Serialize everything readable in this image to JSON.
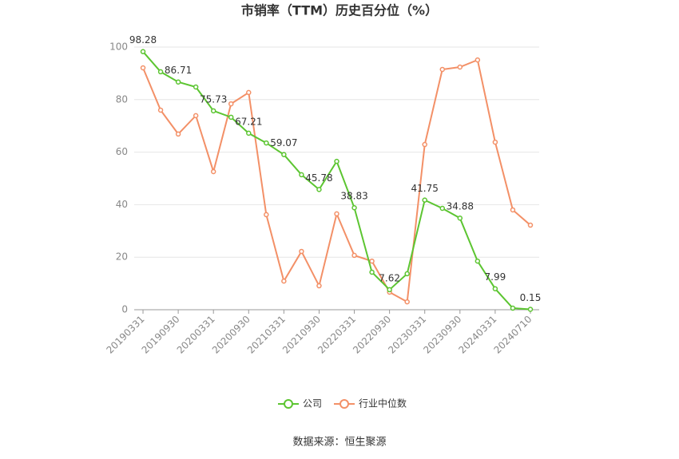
{
  "chart_data": {
    "type": "line",
    "title": "市销率（TTM）历史百分位（%）",
    "source": "数据来源：恒生聚源",
    "categories": [
      "20190331",
      null,
      "20190930",
      null,
      "20200331",
      null,
      "20200930",
      null,
      "20210331",
      null,
      "20210930",
      null,
      "20220331",
      null,
      "20220930",
      null,
      "20230331",
      null,
      "20230930",
      null,
      "20240331",
      null,
      "20240710"
    ],
    "series": [
      {
        "name": "公司",
        "color": "#5cc531",
        "values": [
          98.28,
          90.6,
          86.71,
          84.8,
          75.73,
          73.3,
          67.21,
          63.5,
          59.07,
          51.4,
          45.78,
          56.5,
          38.83,
          14.3,
          7.62,
          13.7,
          41.75,
          38.6,
          34.88,
          18.5,
          7.99,
          0.6,
          0.15
        ],
        "value_labels": [
          "98.28",
          null,
          "86.71",
          null,
          "75.73",
          null,
          "67.21",
          null,
          "59.07",
          null,
          "45.78",
          null,
          "38.83",
          null,
          "7.62",
          null,
          "41.75",
          null,
          "34.88",
          null,
          "7.99",
          null,
          "0.15"
        ]
      },
      {
        "name": "行业中位数",
        "color": "#f39067",
        "values": [
          92.1,
          76,
          66.9,
          73.9,
          52.6,
          78.4,
          82.7,
          36.2,
          10.9,
          22.2,
          9.1,
          36.5,
          20.7,
          18.5,
          6.7,
          3,
          62.9,
          91.5,
          92.4,
          95.1,
          63.8,
          38,
          32.2
        ]
      }
    ],
    "ylim": [
      0,
      100
    ],
    "yticks": [
      0,
      20,
      40,
      60,
      80,
      100
    ],
    "grid": true
  }
}
